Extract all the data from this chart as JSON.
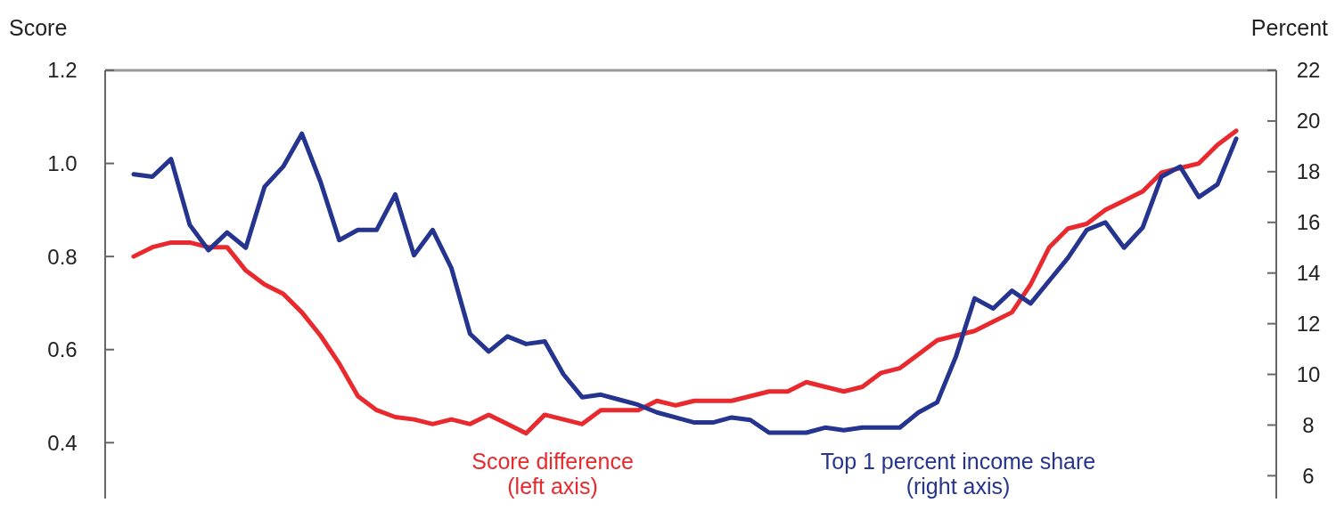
{
  "chart_data": {
    "type": "line",
    "ylabel": "Score",
    "y2label": "Percent",
    "categories": [
      null,
      null,
      null,
      null,
      null,
      null,
      null,
      null,
      null,
      null,
      null,
      null,
      null,
      null,
      null,
      null,
      null,
      null,
      null,
      null,
      null,
      null,
      null,
      null,
      null,
      null,
      null,
      null,
      null,
      null,
      null,
      null,
      null,
      null,
      null,
      null,
      null,
      null,
      null,
      null,
      null,
      null,
      null,
      null,
      null,
      null,
      null,
      null,
      null,
      null,
      null,
      null,
      null,
      null,
      null,
      null,
      null,
      null,
      null,
      null
    ],
    "ylim": [
      0.28,
      1.2
    ],
    "yticks": [
      {
        "value": 0.4,
        "label": "0.4"
      },
      {
        "value": 0.6,
        "label": "0.6"
      },
      {
        "value": 0.8,
        "label": "0.8"
      },
      {
        "value": 1.0,
        "label": "1.0"
      },
      {
        "value": 1.2,
        "label": "1.2"
      }
    ],
    "y2lim": [
      5.1,
      22
    ],
    "y2ticks": [
      6,
      8,
      10,
      12,
      14,
      16,
      18,
      20,
      22
    ],
    "legend": false,
    "grid": false,
    "series": [
      {
        "name": "Score difference (left axis)",
        "color": "#e8292e",
        "values": [
          0.8,
          0.82,
          0.83,
          0.83,
          0.82,
          0.82,
          0.77,
          0.74,
          0.72,
          0.68,
          0.63,
          0.57,
          0.5,
          0.47,
          0.455,
          0.45,
          0.44,
          0.45,
          0.44,
          0.46,
          0.44,
          0.42,
          0.46,
          0.45,
          0.44,
          0.47,
          0.47,
          0.47,
          0.49,
          0.48,
          0.49,
          0.49,
          0.49,
          0.5,
          0.51,
          0.51,
          0.53,
          0.52,
          0.51,
          0.52,
          0.55,
          0.56,
          0.59,
          0.62,
          0.63,
          0.64,
          0.66,
          0.68,
          0.74,
          0.82,
          0.86,
          0.87,
          0.9,
          0.92,
          0.94,
          0.98,
          0.99,
          1.0,
          1.04,
          1.07
        ]
      },
      {
        "name": "Top 1 percent income share (right axis)",
        "color": "#24348f",
        "axis": "y2",
        "values": [
          17.9,
          17.8,
          18.5,
          15.9,
          14.9,
          15.6,
          15.0,
          17.4,
          18.2,
          19.5,
          17.6,
          15.3,
          15.7,
          15.7,
          17.1,
          14.7,
          15.7,
          14.2,
          11.6,
          10.9,
          11.5,
          11.2,
          11.3,
          10.0,
          9.1,
          9.2,
          9.0,
          8.8,
          8.5,
          8.3,
          8.1,
          8.1,
          8.3,
          8.2,
          7.7,
          7.7,
          7.7,
          7.9,
          7.8,
          7.9,
          7.9,
          7.9,
          8.5,
          8.9,
          10.7,
          13.0,
          12.6,
          13.3,
          12.8,
          13.7,
          14.6,
          15.7,
          16.0,
          15.0,
          15.8,
          17.8,
          18.2,
          17.0,
          17.5,
          19.3
        ]
      }
    ]
  }
}
